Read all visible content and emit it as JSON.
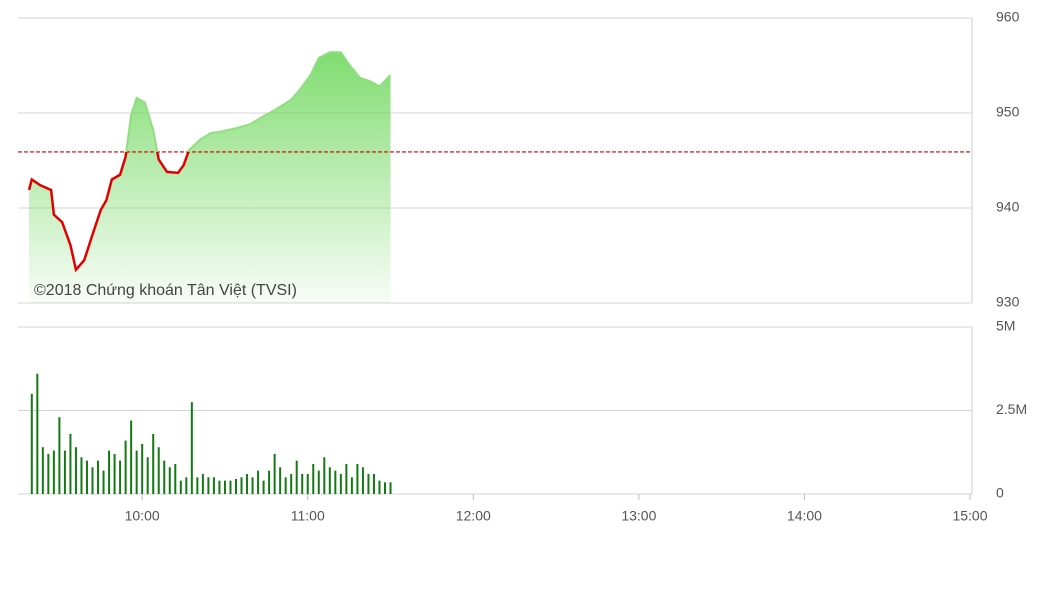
{
  "chart_data": [
    {
      "type": "area",
      "annotation": "©2018 Chứng khoán Tân Việt (TVSI)",
      "x": [
        "09:19",
        "09:20",
        "09:23",
        "09:27",
        "09:28",
        "09:31",
        "09:34",
        "09:36",
        "09:39",
        "09:42",
        "09:45",
        "09:47",
        "09:49",
        "09:52",
        "09:54",
        "09:56",
        "09:58",
        "10:01",
        "10:04",
        "10:06",
        "10:09",
        "10:13",
        "10:15",
        "10:17",
        "10:21",
        "10:25",
        "10:28",
        "10:34",
        "10:39",
        "10:43",
        "10:48",
        "10:54",
        "10:57",
        "11:01",
        "11:04",
        "11:08",
        "11:12",
        "11:15",
        "11:19",
        "11:23",
        "11:26",
        "11:30"
      ],
      "values": [
        941.9,
        943,
        942.4,
        941.9,
        939.3,
        938.5,
        936.1,
        933.5,
        934.5,
        937.2,
        939.8,
        940.8,
        943,
        943.5,
        945.4,
        949.8,
        951.6,
        951.1,
        948.2,
        945.1,
        943.8,
        943.7,
        944.5,
        946.1,
        947.2,
        947.9,
        948,
        948.4,
        948.8,
        949.5,
        950.3,
        951.4,
        952.4,
        954,
        955.8,
        956.4,
        956.4,
        955.1,
        953.7,
        953.3,
        952.8,
        954
      ],
      "reference": 945.9,
      "xlim": [
        "09:15",
        "15:00"
      ],
      "ylim": [
        930,
        960
      ],
      "yticks": [
        930,
        940,
        950,
        960
      ],
      "line_color_above": "#8fdf7f",
      "line_color_below": "#e00000",
      "area_color": "#72d860",
      "reference_color": "#d00000",
      "grid": true
    },
    {
      "type": "bar",
      "x": [
        "09:20",
        "09:22",
        "09:24",
        "09:26",
        "09:28",
        "09:30",
        "09:32",
        "09:34",
        "09:36",
        "09:38",
        "09:40",
        "09:42",
        "09:44",
        "09:46",
        "09:48",
        "09:50",
        "09:52",
        "09:54",
        "09:56",
        "09:58",
        "10:00",
        "10:02",
        "10:04",
        "10:06",
        "10:08",
        "10:10",
        "10:12",
        "10:14",
        "10:16",
        "10:18",
        "10:20",
        "10:22",
        "10:24",
        "10:26",
        "10:28",
        "10:30",
        "10:32",
        "10:34",
        "10:36",
        "10:38",
        "10:40",
        "10:42",
        "10:44",
        "10:46",
        "10:48",
        "10:50",
        "10:52",
        "10:54",
        "10:56",
        "10:58",
        "11:00",
        "11:02",
        "11:04",
        "11:06",
        "11:08",
        "11:10",
        "11:12",
        "11:14",
        "11:16",
        "11:18",
        "11:20",
        "11:22",
        "11:24",
        "11:26",
        "11:28",
        "11:30"
      ],
      "values": [
        3000000,
        3600000,
        1400000,
        1200000,
        1300000,
        2300000,
        1300000,
        1800000,
        1400000,
        1100000,
        1000000,
        800000,
        1000000,
        700000,
        1300000,
        1200000,
        1000000,
        1600000,
        2200000,
        1300000,
        1500000,
        1100000,
        1800000,
        1400000,
        1000000,
        800000,
        900000,
        400000,
        500000,
        2750000,
        500000,
        600000,
        500000,
        500000,
        400000,
        400000,
        400000,
        450000,
        500000,
        600000,
        500000,
        700000,
        400000,
        700000,
        1200000,
        800000,
        500000,
        600000,
        1000000,
        600000,
        600000,
        900000,
        700000,
        1100000,
        800000,
        700000,
        600000,
        900000,
        500000,
        900000,
        800000,
        600000,
        600000,
        400000,
        350000,
        350000
      ],
      "color": "#137a13",
      "xlim": [
        "09:15",
        "15:00"
      ],
      "xticks": [
        "10:00",
        "11:00",
        "12:00",
        "13:00",
        "14:00",
        "15:00"
      ],
      "ylim": [
        0,
        5000000
      ],
      "yticks": [
        0,
        {
          "value": 2500000,
          "label": "2.5M"
        },
        {
          "value": 5000000,
          "label": "5M"
        }
      ],
      "grid": true
    }
  ]
}
